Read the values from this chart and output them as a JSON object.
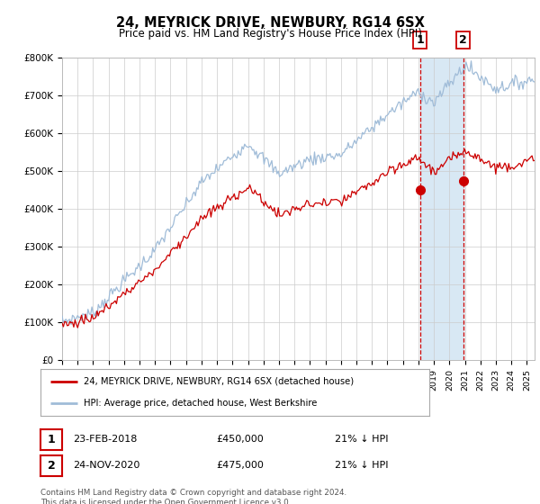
{
  "title": "24, MEYRICK DRIVE, NEWBURY, RG14 6SX",
  "subtitle": "Price paid vs. HM Land Registry's House Price Index (HPI)",
  "ylabel_ticks": [
    "£0",
    "£100K",
    "£200K",
    "£300K",
    "£400K",
    "£500K",
    "£600K",
    "£700K",
    "£800K"
  ],
  "ylim": [
    0,
    800000
  ],
  "xlim_start": 1995.0,
  "xlim_end": 2025.5,
  "sale1_date": 2018.12,
  "sale1_price": 450000,
  "sale1_label": "1",
  "sale2_date": 2020.9,
  "sale2_price": 475000,
  "sale2_label": "2",
  "hpi_color": "#a0bcd8",
  "price_color": "#cc0000",
  "vline_color": "#cc0000",
  "highlight_color": "#d8e8f4",
  "legend_label_price": "24, MEYRICK DRIVE, NEWBURY, RG14 6SX (detached house)",
  "legend_label_hpi": "HPI: Average price, detached house, West Berkshire",
  "table_row1": [
    "1",
    "23-FEB-2018",
    "£450,000",
    "21% ↓ HPI"
  ],
  "table_row2": [
    "2",
    "24-NOV-2020",
    "£475,000",
    "21% ↓ HPI"
  ],
  "footnote": "Contains HM Land Registry data © Crown copyright and database right 2024.\nThis data is licensed under the Open Government Licence v3.0.",
  "bg_color": "#ffffff",
  "grid_color": "#cccccc"
}
